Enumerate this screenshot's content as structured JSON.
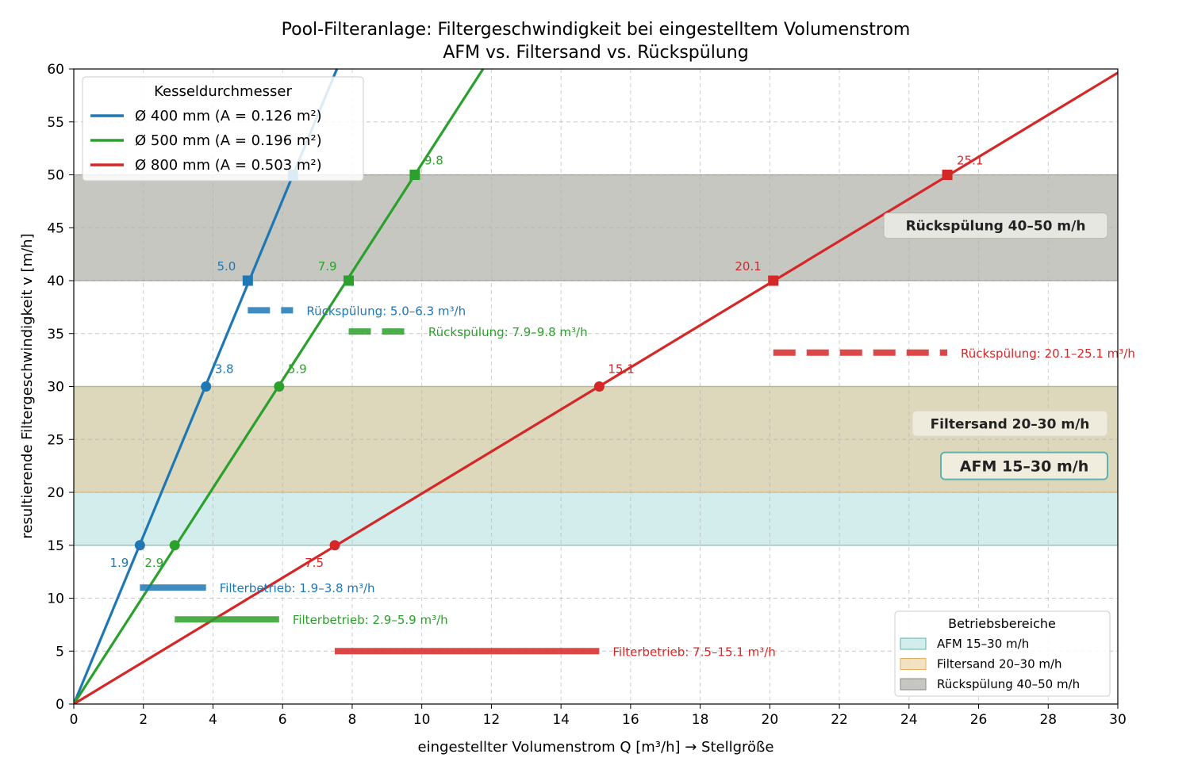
{
  "chart_data": {
    "type": "line",
    "title": "Pool-Filteranlage: Filtergeschwindigkeit bei eingestelltem Volumenstrom",
    "subtitle": "AFM vs. Filtersand vs. Rückspülung",
    "xlabel": "eingestellter Volumenstrom Q [m³/h]  →  Stellgröße",
    "ylabel": "resultierende Filtergeschwindigkeit v [m/h]",
    "xlim": [
      0,
      30
    ],
    "ylim": [
      0,
      60
    ],
    "xticks": [
      0,
      2,
      4,
      6,
      8,
      10,
      12,
      14,
      16,
      18,
      20,
      22,
      24,
      26,
      28,
      30
    ],
    "yticks": [
      0,
      5,
      10,
      15,
      20,
      25,
      30,
      35,
      40,
      45,
      50,
      55,
      60
    ],
    "grid": true,
    "legend_title": "Kesseldurchmesser",
    "legend_position": "top-left",
    "series": [
      {
        "name": "Ø 400 mm  (A = 0.126 m²)",
        "color": "#1f77b4",
        "area": 0.126,
        "filter_points": [
          {
            "q": 1.9,
            "v": 15,
            "label": "1.9"
          },
          {
            "q": 3.8,
            "v": 30,
            "label": "3.8"
          }
        ],
        "backwash_points": [
          {
            "q": 5.0,
            "v": 40,
            "label": "5.0"
          },
          {
            "q": 6.3,
            "v": 50,
            "label": ""
          }
        ],
        "filter_range": {
          "from": 1.9,
          "to": 3.8,
          "v": 11,
          "label": "Filterbetrieb: 1.9–3.8 m³/h"
        },
        "backwash_range": {
          "from": 5.0,
          "to": 6.3,
          "v": 37.2,
          "label": "Rückspülung: 5.0–6.3 m³/h"
        }
      },
      {
        "name": "Ø 500 mm  (A = 0.196 m²)",
        "color": "#2ca02c",
        "area": 0.196,
        "filter_points": [
          {
            "q": 2.9,
            "v": 15,
            "label": "2.9"
          },
          {
            "q": 5.9,
            "v": 30,
            "label": "5.9"
          }
        ],
        "backwash_points": [
          {
            "q": 7.9,
            "v": 40,
            "label": "7.9"
          },
          {
            "q": 9.8,
            "v": 50,
            "label": "9.8"
          }
        ],
        "filter_range": {
          "from": 2.9,
          "to": 5.9,
          "v": 8,
          "label": "Filterbetrieb: 2.9–5.9 m³/h"
        },
        "backwash_range": {
          "from": 7.9,
          "to": 9.8,
          "v": 35.2,
          "label": "Rückspülung: 7.9–9.8 m³/h"
        }
      },
      {
        "name": "Ø 800 mm  (A = 0.503 m²)",
        "color": "#d62728",
        "area": 0.503,
        "filter_points": [
          {
            "q": 7.5,
            "v": 15,
            "label": "7.5"
          },
          {
            "q": 15.1,
            "v": 30,
            "label": "15.1"
          }
        ],
        "backwash_points": [
          {
            "q": 20.1,
            "v": 40,
            "label": "20.1"
          },
          {
            "q": 25.1,
            "v": 50,
            "label": "25.1"
          }
        ],
        "filter_range": {
          "from": 7.5,
          "to": 15.1,
          "v": 5,
          "label": "Filterbetrieb: 7.5–15.1 m³/h"
        },
        "backwash_range": {
          "from": 20.1,
          "to": 25.1,
          "v": 33.2,
          "label": "Rückspülung: 20.1–25.1 m³/h"
        }
      }
    ],
    "bands": [
      {
        "from": 15,
        "to": 30,
        "fill": "#a8dbd9",
        "edge": "#5fb3ad",
        "legend": "AFM  15–30 m/h",
        "label": "AFM  15–30 m/h",
        "label_v": 22.5
      },
      {
        "from": 20,
        "to": 30,
        "fill": "#e8c48a",
        "edge": "#e0b060",
        "legend": "Filtersand  20–30 m/h",
        "label": "Filtersand  20–30 m/h",
        "label_v": 26.5
      },
      {
        "from": 40,
        "to": 50,
        "fill": "#8f8f85",
        "edge": "#8a8a80",
        "legend": "Rückspülung  40–50 m/h",
        "label": "Rückspülung  40–50 m/h",
        "label_v": 45.2
      }
    ],
    "bands_legend_title": "Betriebsbereiche",
    "bands_legend_position": "bottom-right"
  }
}
